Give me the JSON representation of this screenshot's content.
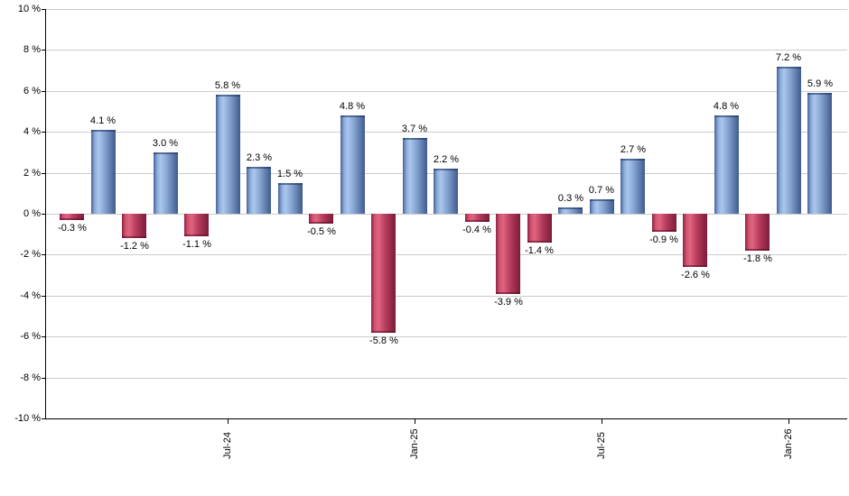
{
  "chart_data": {
    "type": "bar",
    "title": "",
    "xlabel": "",
    "ylabel": "",
    "ylim": [
      -10,
      10
    ],
    "y_tick_step": 2,
    "grid": true,
    "legend": "none",
    "background": "#ffffff",
    "y_ticks": [
      {
        "value": 10,
        "label": "10 %"
      },
      {
        "value": 8,
        "label": "8 %"
      },
      {
        "value": 6,
        "label": "6 %"
      },
      {
        "value": 4,
        "label": "4 %"
      },
      {
        "value": 2,
        "label": "2 %"
      },
      {
        "value": 0,
        "label": "0 %"
      },
      {
        "value": -2,
        "label": "-2 %"
      },
      {
        "value": -4,
        "label": "-4 %"
      },
      {
        "value": -6,
        "label": "-6 %"
      },
      {
        "value": -8,
        "label": "-8 %"
      },
      {
        "value": -10,
        "label": "-10 %"
      }
    ],
    "x_ticks": [
      {
        "bar_index": 5,
        "label": "Jul-24"
      },
      {
        "bar_index": 11,
        "label": "Jan-25"
      },
      {
        "bar_index": 17,
        "label": "Jul-25"
      },
      {
        "bar_index": 23,
        "label": "Jan-26"
      }
    ],
    "bars": [
      {
        "value": -0.3,
        "label": "-0.3 %"
      },
      {
        "value": 4.1,
        "label": "4.1 %"
      },
      {
        "value": -1.2,
        "label": "-1.2 %"
      },
      {
        "value": 3.0,
        "label": "3.0 %"
      },
      {
        "value": -1.1,
        "label": "-1.1 %"
      },
      {
        "value": 5.8,
        "label": "5.8 %"
      },
      {
        "value": 2.3,
        "label": "2.3 %"
      },
      {
        "value": 1.5,
        "label": "1.5 %"
      },
      {
        "value": -0.5,
        "label": "-0.5 %"
      },
      {
        "value": 4.8,
        "label": "4.8 %"
      },
      {
        "value": -5.8,
        "label": "-5.8 %"
      },
      {
        "value": 3.7,
        "label": "3.7 %"
      },
      {
        "value": 2.2,
        "label": "2.2 %"
      },
      {
        "value": -0.4,
        "label": "-0.4 %"
      },
      {
        "value": -3.9,
        "label": "-3.9 %"
      },
      {
        "value": -1.4,
        "label": "-1.4 %"
      },
      {
        "value": 0.3,
        "label": "0.3 %"
      },
      {
        "value": 0.7,
        "label": "0.7 %"
      },
      {
        "value": 2.7,
        "label": "2.7 %"
      },
      {
        "value": -0.9,
        "label": "-0.9 %"
      },
      {
        "value": -2.6,
        "label": "-2.6 %"
      },
      {
        "value": 4.8,
        "label": "4.8 %"
      },
      {
        "value": -1.8,
        "label": "-1.8 %"
      },
      {
        "value": 7.2,
        "label": "7.2 %"
      },
      {
        "value": 5.9,
        "label": "5.9 %"
      }
    ],
    "colors": {
      "positive_gradient": [
        "#46629a",
        "#8fadd9",
        "#a9c7ee",
        "#7e9dca",
        "#3f5b8d"
      ],
      "negative_gradient": [
        "#8e2140",
        "#d05571",
        "#e0647f",
        "#b43a5b",
        "#7c1c39"
      ],
      "gridline": "#cccccc",
      "axis": "#000000",
      "label_text": "#000000",
      "background": "#ffffff"
    }
  }
}
